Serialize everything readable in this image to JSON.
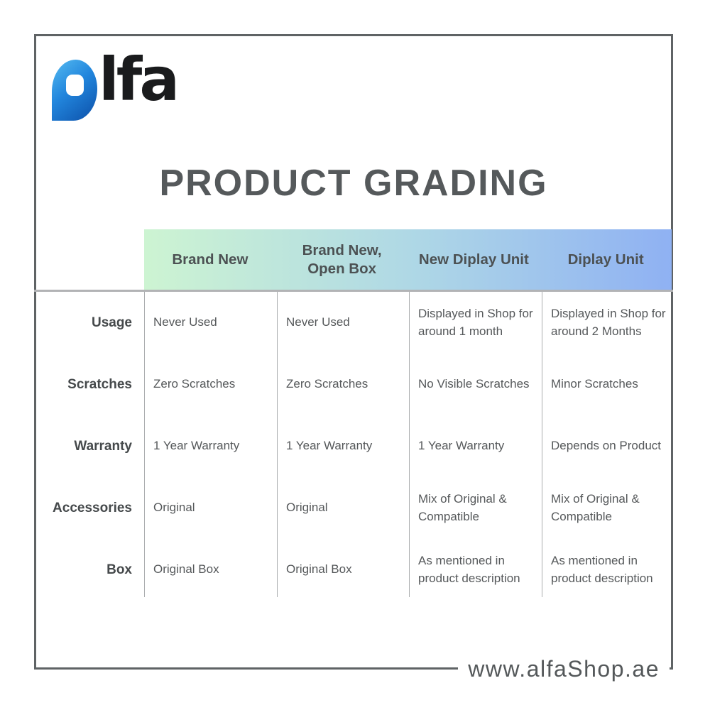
{
  "logo": {
    "brand": "alfa",
    "text_rest": "lfa"
  },
  "title": "PRODUCT GRADING",
  "table": {
    "columns": [
      "Brand New",
      "Brand New,\nOpen Box",
      "New Diplay Unit",
      "Diplay Unit"
    ],
    "rows": [
      {
        "label": "Usage",
        "values": [
          "Never Used",
          "Never Used",
          "Displayed in Shop for around 1 month",
          "Displayed in Shop for around 2 Months"
        ]
      },
      {
        "label": "Scratches",
        "values": [
          "Zero Scratches",
          "Zero Scratches",
          "No Visible Scratches",
          "Minor Scratches"
        ]
      },
      {
        "label": "Warranty",
        "values": [
          "1 Year Warranty",
          "1 Year Warranty",
          "1 Year Warranty",
          "Depends on Product"
        ]
      },
      {
        "label": "Accessories",
        "values": [
          "Original",
          "Original",
          "Mix of Original & Compatible",
          "Mix of Original & Compatible"
        ]
      },
      {
        "label": "Box",
        "values": [
          "Original Box",
          "Original Box",
          "As mentioned in product description",
          "As mentioned in product description"
        ]
      }
    ]
  },
  "footer": {
    "website": "www.alfaShop.ae"
  },
  "colors": {
    "frame_border": "#5f6365",
    "header_gradient_start": "#cdf4d2",
    "header_gradient_mid": "#aed7e6",
    "header_gradient_end": "#8fb1f3",
    "title_text": "#55595b",
    "header_text": "#4c5153",
    "label_text": "#45494b",
    "cell_text": "#55585a",
    "divider": "#aaacae",
    "logo_blue_light": "#56bcf1",
    "logo_blue_dark": "#0c4fa8",
    "logo_black": "#1a1b1d"
  }
}
